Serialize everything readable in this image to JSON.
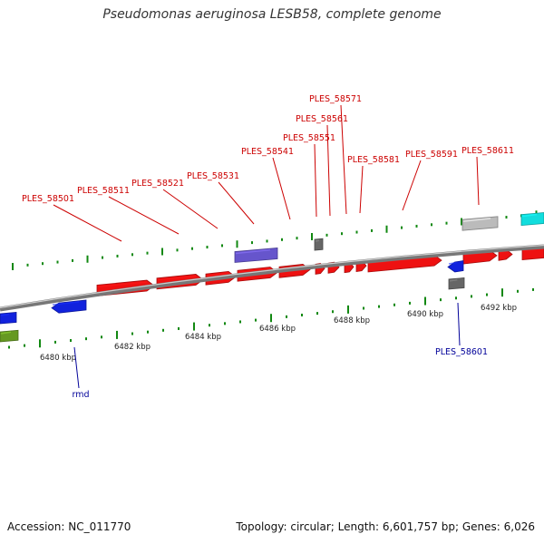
{
  "header": {
    "title": "Pseudomonas aeruginosa LESB58, complete genome"
  },
  "footer": {
    "accession_label": "Accession: NC_011770",
    "summary_label": "Topology: circular; Length: 6,601,757 bp; Genes: 6,026"
  },
  "colors": {
    "red_gene": "#ee1111",
    "red_label": "#cc0000",
    "blue_label": "#000099",
    "purple_gene": "#6655cc",
    "blue_gene": "#1122dd",
    "olive_gene": "#669922",
    "cyan_gene": "#11dddd",
    "gray_gene": "#bbbbbb",
    "dark_gray_gene": "#666666",
    "tick_green": "#118811",
    "backbone": "#888888"
  },
  "scale": {
    "ticks": [
      "6480 kbp",
      "6482 kbp",
      "6484 kbp",
      "6486 kbp",
      "6488 kbp",
      "6490 kbp",
      "6492 kbp"
    ]
  },
  "gene_labels": {
    "top": [
      "PLES_58501",
      "PLES_58511",
      "PLES_58521",
      "PLES_58531",
      "PLES_58541",
      "PLES_58551",
      "PLES_58561",
      "PLES_58571",
      "PLES_58581",
      "PLES_58591",
      "PLES_58611"
    ],
    "bottom": [
      "rmd",
      "PLES_58601"
    ]
  }
}
